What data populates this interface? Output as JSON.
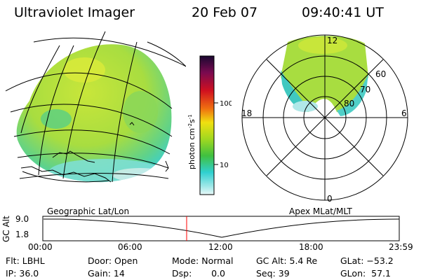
{
  "header": {
    "title": "Ultraviolet Imager",
    "date": "20 Feb 07",
    "time": "09:40:41 UT"
  },
  "colorbar": {
    "ticks": [
      "100",
      "10"
    ],
    "unit_text": "photon cm",
    "unit_exp1": "-2",
    "unit_s": "s",
    "unit_exp2": "-1"
  },
  "polar": {
    "mlt_labels": [
      "12",
      "18",
      "6",
      "0"
    ],
    "lat_labels": [
      "60",
      "70",
      "80"
    ]
  },
  "timeline": {
    "left_title": "Geographic Lat/Lon",
    "right_title": "Apex  MLat/MLT",
    "ylabel": "GC Alt",
    "yticks": [
      "9.0",
      "1.8"
    ],
    "xticks": [
      "00:00",
      "06:00",
      "12:00",
      "18:00",
      "23:59"
    ],
    "current_marker_color": "#ff0000"
  },
  "status": {
    "flt": "Flt: LBHL",
    "ip": "IP: 36.0",
    "door": "Door: Open",
    "gain": "Gain: 14",
    "mode": "Mode: Normal",
    "dsp": "Dsp:       0.0",
    "gc_alt": "GC Alt: 5.4 Re",
    "seq": "Seq: 39",
    "glat": "GLat: −53.2",
    "glon": "GLon:  57.1"
  }
}
